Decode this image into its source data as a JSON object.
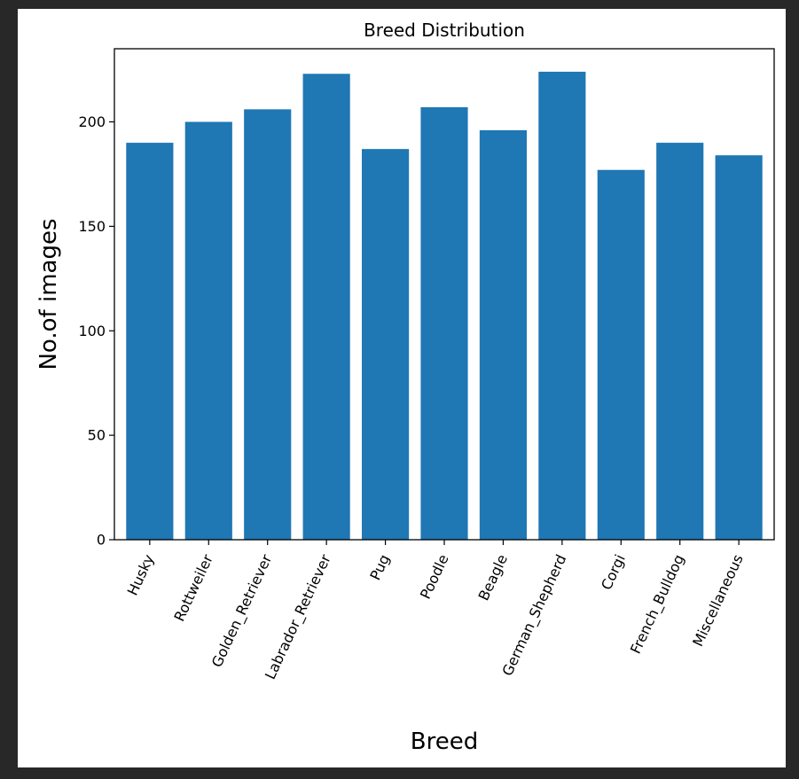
{
  "chart_data": {
    "type": "bar",
    "title": "Breed Distribution",
    "xlabel": "Breed",
    "ylabel": "No.of images",
    "categories": [
      "Husky",
      "Rottweiler",
      "Golden_Retriever",
      "Labrador_Retriever",
      "Pug",
      "Poodle",
      "Beagle",
      "German_Shepherd",
      "Corgi",
      "French_Bulldog",
      "Miscellaneous"
    ],
    "values": [
      190,
      200,
      206,
      223,
      187,
      207,
      196,
      224,
      177,
      190,
      184
    ],
    "ylim": [
      0,
      235
    ],
    "yticks": [
      0,
      50,
      100,
      150,
      200
    ],
    "grid": false,
    "bar_color": "#1f77b4"
  }
}
